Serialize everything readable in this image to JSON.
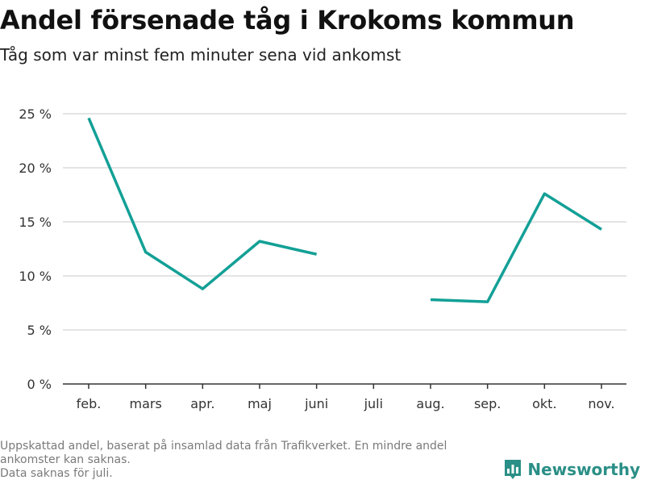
{
  "header": {
    "title": "Andel försenade tåg i Krokoms kommun",
    "subtitle": "Tåg som var minst fem minuter sena vid ankomst"
  },
  "footer": {
    "note_line1": "Uppskattad andel, baserat på insamlad data från Trafikverket. En mindre andel",
    "note_line2": "ankomster kan saknas.",
    "note_line3": "Data saknas för juli."
  },
  "brand": {
    "name": "Newsworthy",
    "icon": "bar-chart-logo-icon",
    "color": "#2a8f86"
  },
  "chart_data": {
    "type": "line",
    "title": "Andel försenade tåg i Krokoms kommun",
    "subtitle": "Tåg som var minst fem minuter sena vid ankomst",
    "xlabel": "",
    "ylabel": "",
    "categories": [
      "feb.",
      "mars",
      "apr.",
      "maj",
      "juni",
      "juli",
      "aug.",
      "sep.",
      "okt.",
      "nov."
    ],
    "series": [
      {
        "values": [
          24.6,
          12.2,
          8.8,
          13.2,
          12.0,
          null,
          7.8,
          7.6,
          17.6,
          14.3
        ],
        "color": "#13a096"
      }
    ],
    "ylim": [
      0,
      25
    ],
    "yticks": [
      0,
      5,
      10,
      15,
      20,
      25
    ],
    "ytick_labels": [
      "0 %",
      "5 %",
      "10 %",
      "15 %",
      "20 %",
      "25 %"
    ],
    "grid": true,
    "legend": "none"
  }
}
